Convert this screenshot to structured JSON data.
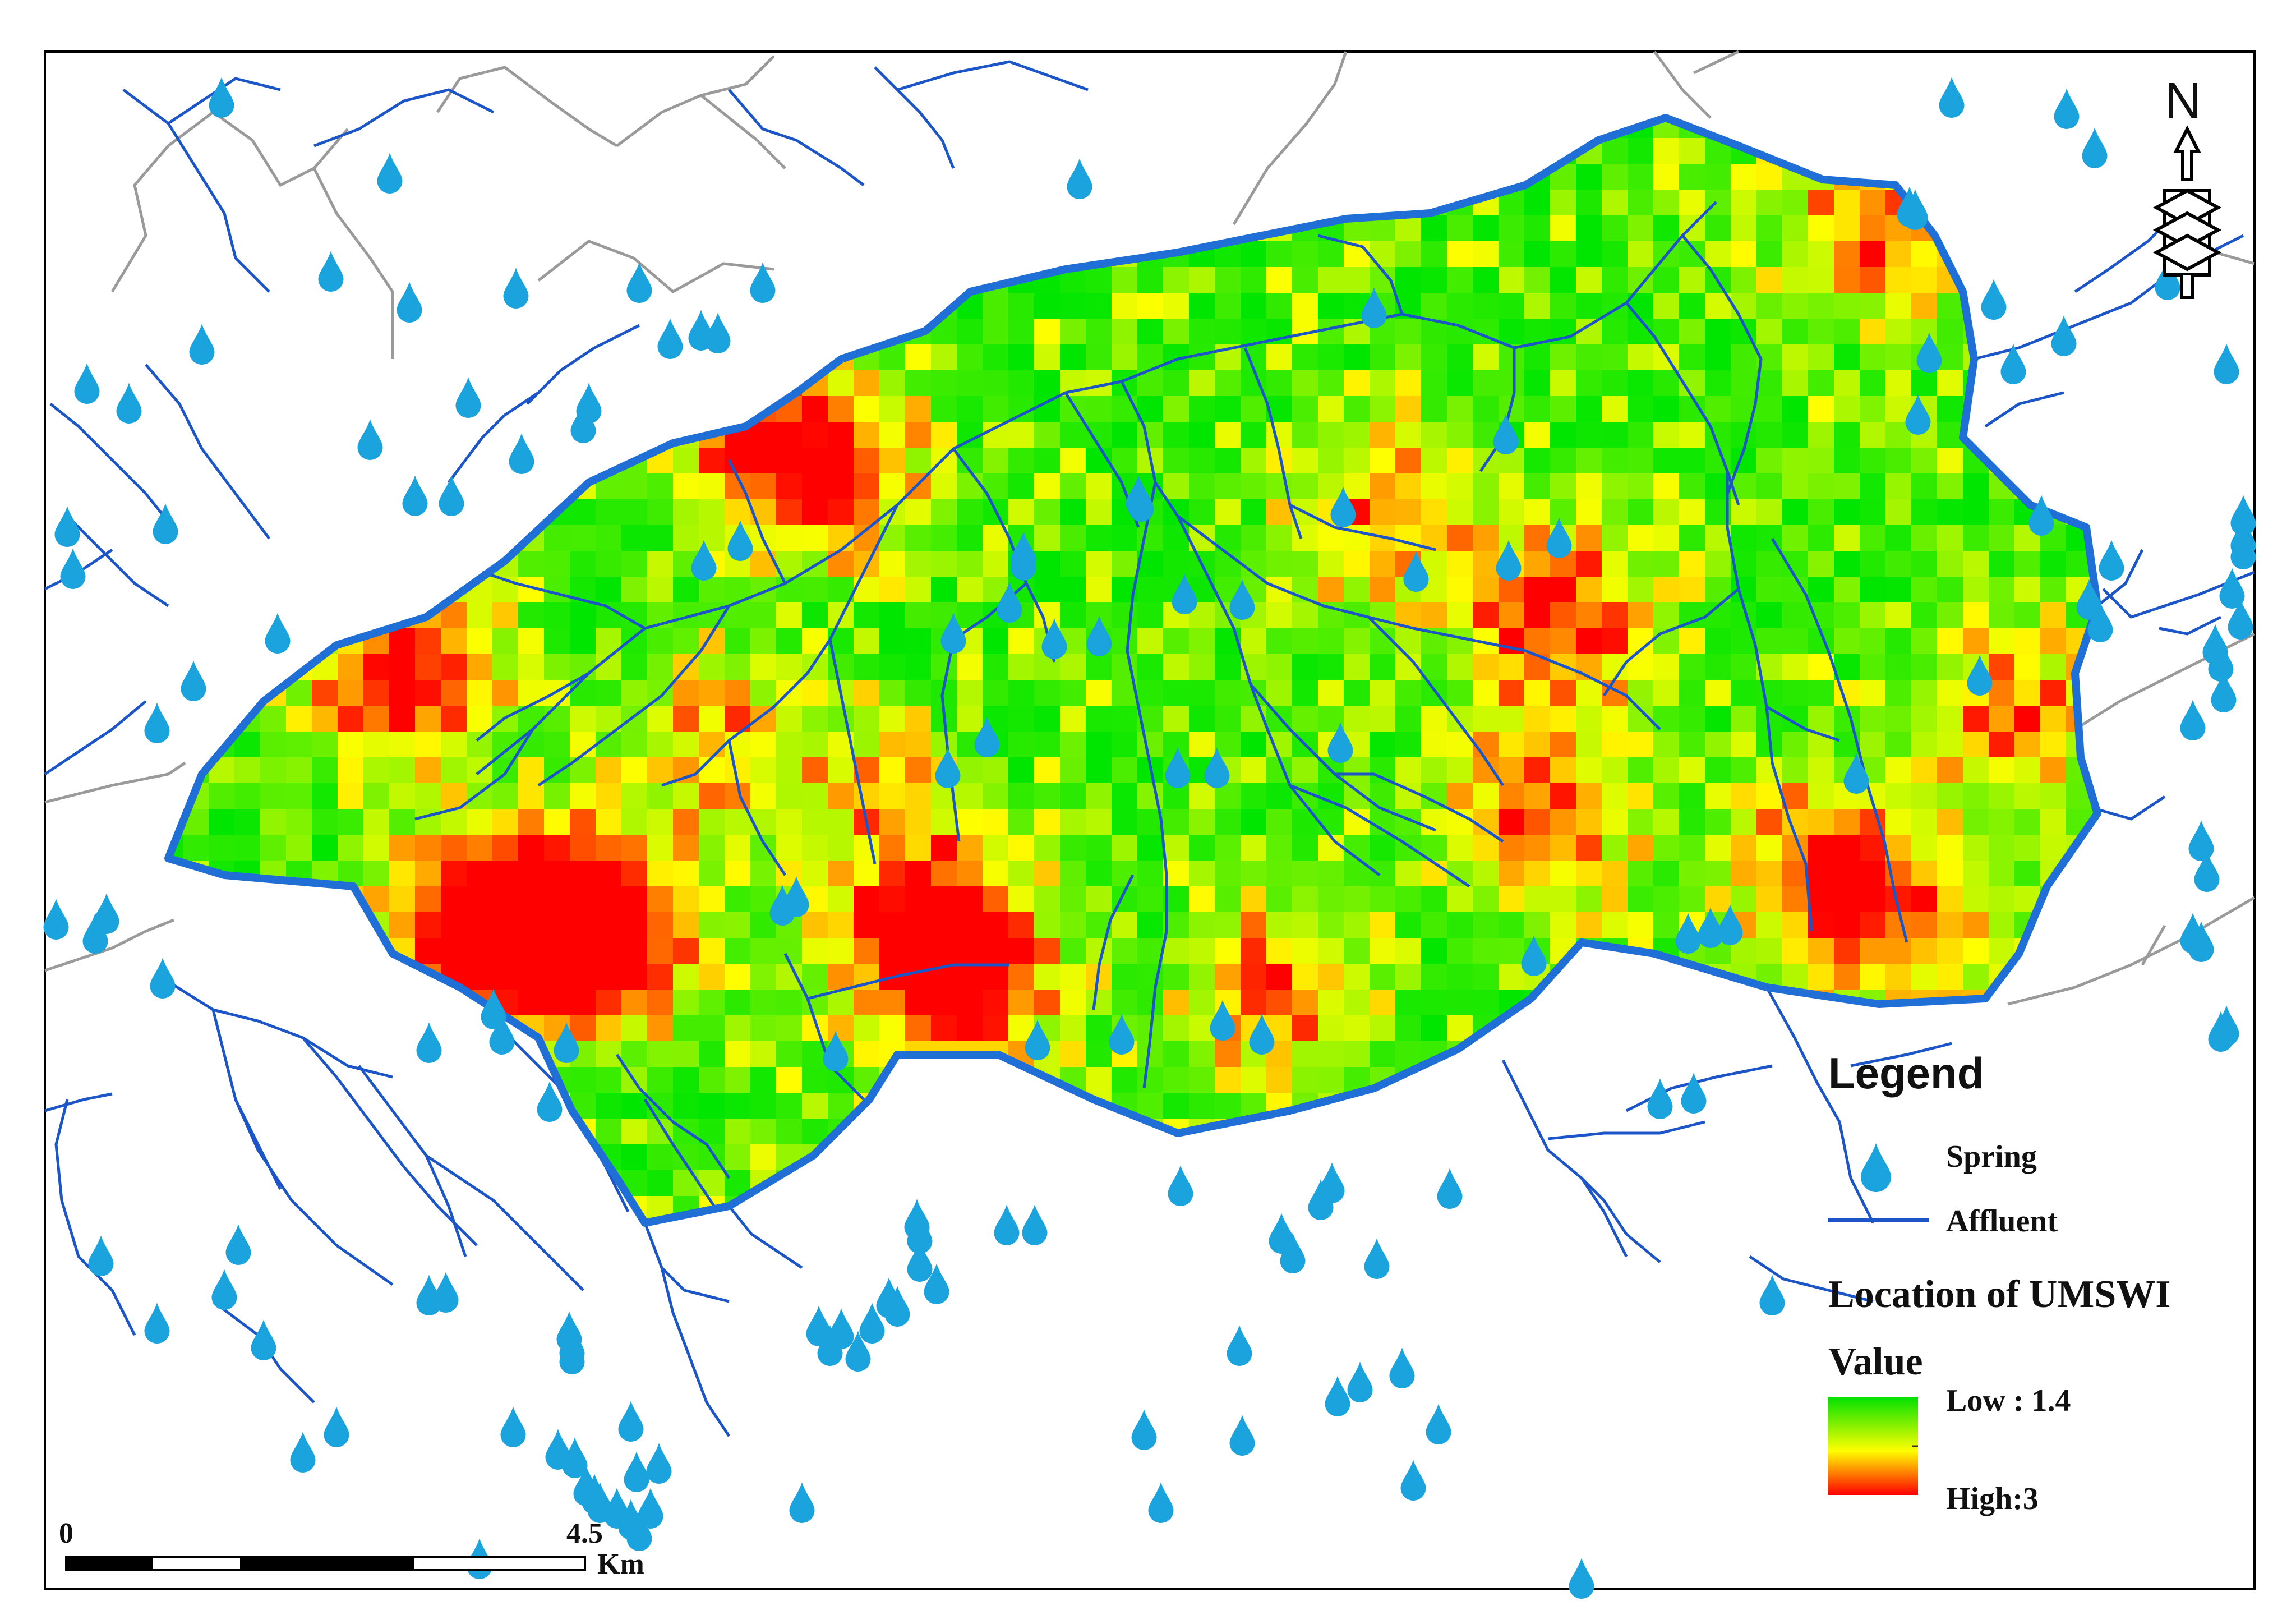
{
  "legend": {
    "title": "Legend",
    "spring_label": "Spring",
    "affluent_label": "Affluent",
    "layer_title": "Location of UMSWI",
    "value_label": "Value",
    "low_label": "Low : 1.4",
    "high_label": "High:3"
  },
  "scale_bar": {
    "start_label": "0",
    "mid_label": "4.5",
    "unit_label": "Km"
  },
  "north_arrow": {
    "label": "N"
  },
  "colors": {
    "boundary": "#1f6fd6",
    "affluent": "#1b55c8",
    "spring": "#1aa3dc",
    "road": "#9a9a9a",
    "ramp_low": "#00e000",
    "ramp_mid": "#ffff00",
    "ramp_high": "#ff0000"
  },
  "icons": {
    "spring": "water-drop-icon",
    "north": "north-arrow-icon"
  }
}
